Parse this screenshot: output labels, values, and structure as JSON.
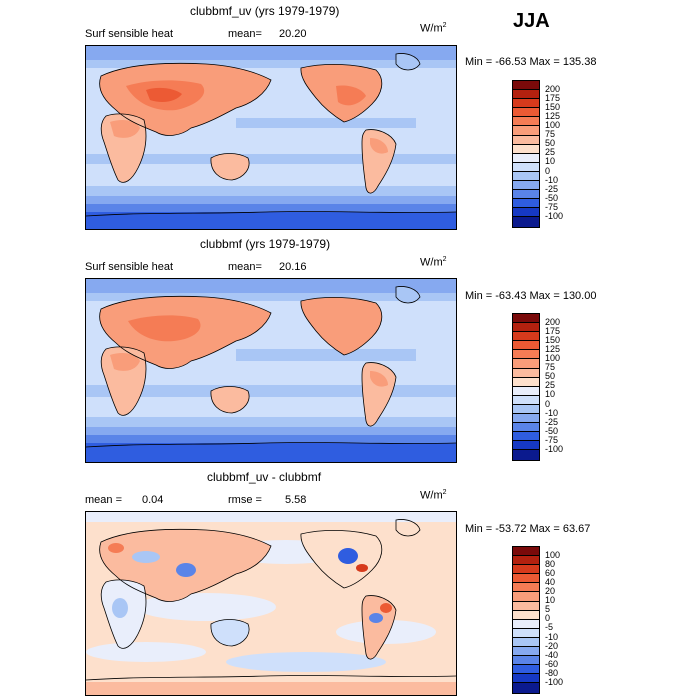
{
  "season": "JJA",
  "panels": [
    {
      "title": "clubbmf_uv (yrs 1979-1979)",
      "left_label": "Surf sensible heat",
      "stat_label": "mean=",
      "stat_value": "20.20",
      "stat2_label": "",
      "stat2_value": "",
      "units": "W/m",
      "units_exp": "2",
      "min_max": "Min = -66.53 Max = 135.38",
      "levels": [
        "200",
        "175",
        "150",
        "125",
        "100",
        "75",
        "50",
        "25",
        "10",
        "0",
        "-10",
        "-25",
        "-50",
        "-75",
        "-100"
      ],
      "colors": [
        "#7a0a0a",
        "#b3210f",
        "#d63a1c",
        "#ec5a34",
        "#f57c55",
        "#f99d7a",
        "#fbbb9f",
        "#fde0cc",
        "#e9eefb",
        "#cfe0fb",
        "#a9c6f5",
        "#86a9f0",
        "#5a84e8",
        "#2f5de0",
        "#1639c4",
        "#0b1a8e"
      ]
    },
    {
      "title": "clubbmf (yrs 1979-1979)",
      "left_label": "Surf sensible heat",
      "stat_label": "mean=",
      "stat_value": "20.16",
      "stat2_label": "",
      "stat2_value": "",
      "units": "W/m",
      "units_exp": "2",
      "min_max": "Min = -63.43 Max = 130.00",
      "levels": [
        "200",
        "175",
        "150",
        "125",
        "100",
        "75",
        "50",
        "25",
        "10",
        "0",
        "-10",
        "-25",
        "-50",
        "-75",
        "-100"
      ],
      "colors": [
        "#7a0a0a",
        "#b3210f",
        "#d63a1c",
        "#ec5a34",
        "#f57c55",
        "#f99d7a",
        "#fbbb9f",
        "#fde0cc",
        "#e9eefb",
        "#cfe0fb",
        "#a9c6f5",
        "#86a9f0",
        "#5a84e8",
        "#2f5de0",
        "#1639c4",
        "#0b1a8e"
      ]
    },
    {
      "title": "clubbmf_uv - clubbmf",
      "left_label": "",
      "stat_label": "mean =",
      "stat_value": "0.04",
      "stat2_label": "rmse =",
      "stat2_value": "5.58",
      "units": "W/m",
      "units_exp": "2",
      "min_max": "Min = -53.72 Max =  63.67",
      "levels": [
        "100",
        "80",
        "60",
        "40",
        "20",
        "10",
        "5",
        "0",
        "-5",
        "-10",
        "-20",
        "-40",
        "-60",
        "-80",
        "-100"
      ],
      "colors": [
        "#7a0a0a",
        "#b3210f",
        "#d63a1c",
        "#ec5a34",
        "#f57c55",
        "#f99d7a",
        "#fbbb9f",
        "#fde0cc",
        "#e9eefb",
        "#cfe0fb",
        "#a9c6f5",
        "#86a9f0",
        "#5a84e8",
        "#2f5de0",
        "#1639c4",
        "#0b1a8e"
      ]
    }
  ]
}
